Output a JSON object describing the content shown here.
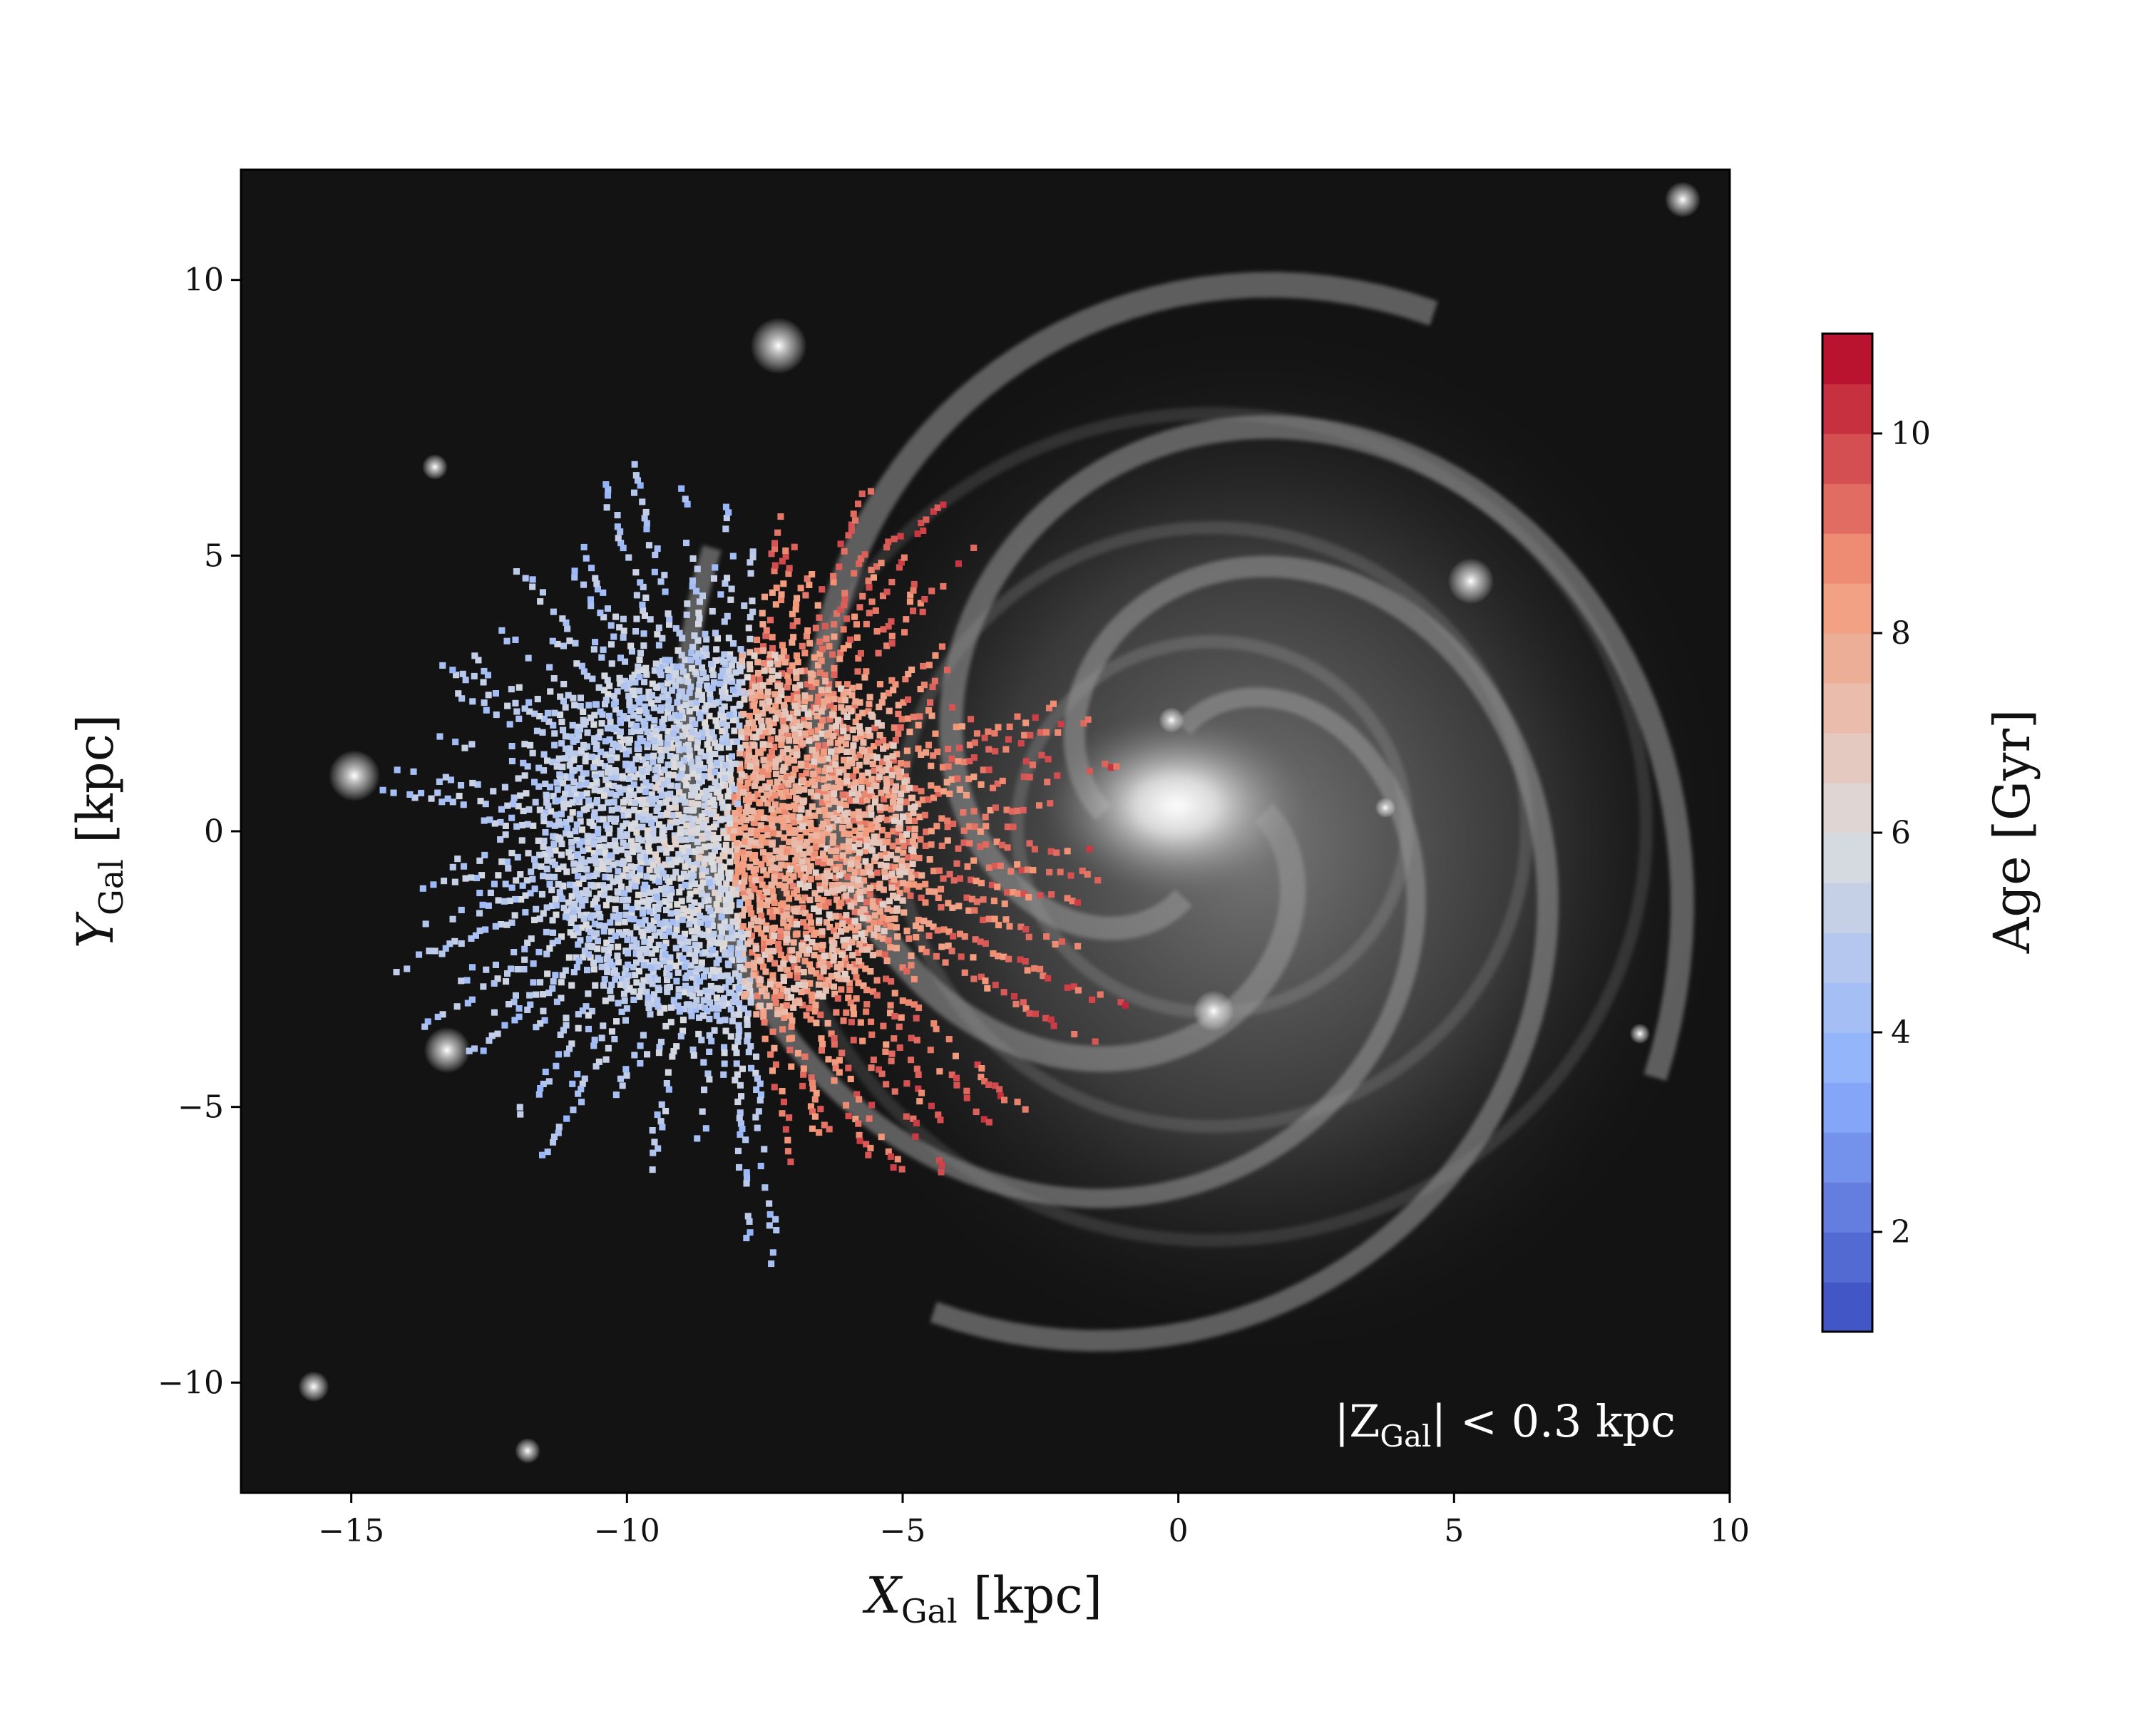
{
  "chart_data": {
    "type": "heatmap",
    "title": "",
    "background": "grayscale spiral galaxy image",
    "xlabel": {
      "main": "X",
      "sub": "Gal",
      "unit": " [kpc]"
    },
    "ylabel": {
      "main": "Y",
      "sub": "Gal",
      "unit": " [kpc]"
    },
    "xlim": [
      -17,
      10
    ],
    "ylim": [
      -12,
      12
    ],
    "xticks": [
      {
        "value": -15,
        "label": "−15"
      },
      {
        "value": -10,
        "label": "−10"
      },
      {
        "value": -5,
        "label": "−5"
      },
      {
        "value": 0,
        "label": "0"
      },
      {
        "value": 5,
        "label": "5"
      },
      {
        "value": 10,
        "label": "10"
      }
    ],
    "yticks": [
      {
        "value": 10,
        "label": "10"
      },
      {
        "value": 5,
        "label": "5"
      },
      {
        "value": 0,
        "label": "0"
      },
      {
        "value": -5,
        "label": "−5"
      },
      {
        "value": -10,
        "label": "−10"
      }
    ],
    "annotation": {
      "pre": "|Z",
      "sub": "Gal",
      "post": "| < 0.3 kpc"
    },
    "colorbar": {
      "label": "Age [Gyr]",
      "range": [
        1,
        11
      ],
      "colormap": "coolwarm",
      "n_levels": 20,
      "ticks": [
        {
          "value": 2,
          "label": "2"
        },
        {
          "value": 4,
          "label": "4"
        },
        {
          "value": 6,
          "label": "6"
        },
        {
          "value": 8,
          "label": "8"
        },
        {
          "value": 10,
          "label": "10"
        }
      ]
    },
    "observer_position": [
      -8.2,
      0.0
    ],
    "age_pattern": {
      "description": "binned mean stellar age, radial rays from observer",
      "outer_disc_age": 4.5,
      "inner_disc_age": 8.5,
      "max_age_near_centre": 10.5
    }
  }
}
